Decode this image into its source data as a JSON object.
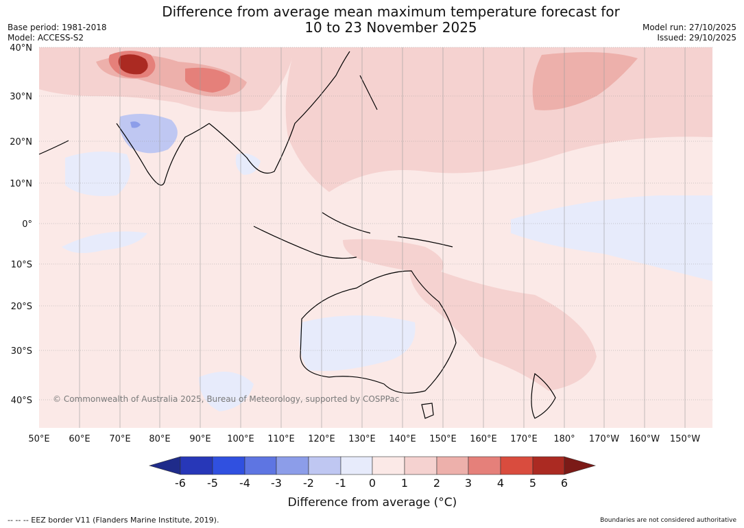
{
  "header": {
    "title_line1": "Difference from average mean maximum temperature forecast for",
    "title_line2": "10 to 23 November 2025",
    "base_period": "Base period: 1981-2018",
    "model": "Model: ACCESS-S2",
    "model_run": "Model run: 27/10/2025",
    "issued": "Issued: 29/10/2025"
  },
  "map": {
    "lat_labels": [
      "40°N",
      "30°N",
      "20°N",
      "10°N",
      "0°",
      "10°S",
      "20°S",
      "30°S",
      "40°S"
    ],
    "lon_labels": [
      "50°E",
      "60°E",
      "70°E",
      "80°E",
      "90°E",
      "100°E",
      "110°E",
      "120°E",
      "130°E",
      "140°E",
      "150°E",
      "160°E",
      "170°E",
      "180°",
      "170°W",
      "160°W",
      "150°W"
    ],
    "copyright": "© Commonwealth of Australia 2025, Bureau of Meteorology, supported by COSPPac",
    "background_color": "#fbe9e7"
  },
  "colorbar": {
    "ticks": [
      "-6",
      "-5",
      "-4",
      "-3",
      "-2",
      "-1",
      "0",
      "1",
      "2",
      "3",
      "4",
      "5",
      "6"
    ],
    "colors": [
      "#1f2b8a",
      "#2737b8",
      "#3050e0",
      "#5e75e2",
      "#8c9de9",
      "#bfc7f2",
      "#e7ebfb",
      "#fbe9e7",
      "#f5d2d0",
      "#edb0ab",
      "#e5807a",
      "#d94c3e",
      "#ab2a22",
      "#7b1a17"
    ],
    "label": "Difference from average (°C)"
  },
  "footer": {
    "eez_legend": "--  --  -- EEZ border V11 (Flanders Marine Institute, 2019).",
    "boundaries_note": "Boundaries are not considered authoritative"
  }
}
